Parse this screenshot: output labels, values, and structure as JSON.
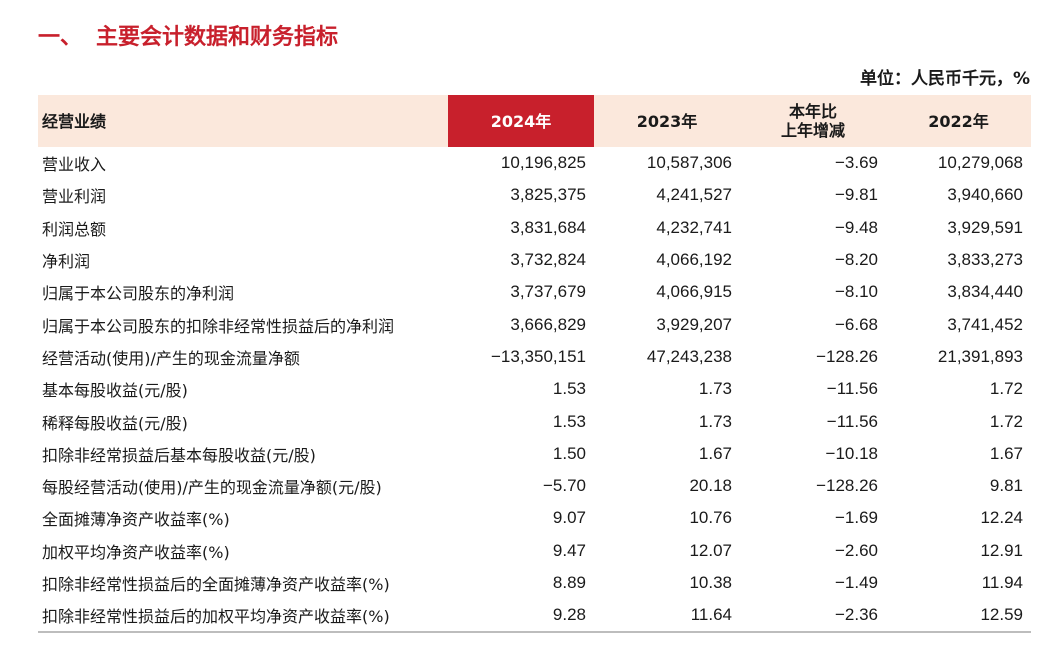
{
  "section": {
    "number": "一、",
    "title": "主要会计数据和财务指标"
  },
  "unit": "单位：人民币千元，%",
  "table": {
    "headers": {
      "label": "经营业绩",
      "y2024": "2024年",
      "y2023": "2023年",
      "change_line1": "本年比",
      "change_line2": "上年增减",
      "y2022": "2022年"
    },
    "rows": [
      {
        "label": "营业收入",
        "y2024": "10,196,825",
        "y2023": "10,587,306",
        "change": "−3.69",
        "y2022": "10,279,068"
      },
      {
        "label": "营业利润",
        "y2024": "3,825,375",
        "y2023": "4,241,527",
        "change": "−9.81",
        "y2022": "3,940,660"
      },
      {
        "label": "利润总额",
        "y2024": "3,831,684",
        "y2023": "4,232,741",
        "change": "−9.48",
        "y2022": "3,929,591"
      },
      {
        "label": "净利润",
        "y2024": "3,732,824",
        "y2023": "4,066,192",
        "change": "−8.20",
        "y2022": "3,833,273"
      },
      {
        "label": "归属于本公司股东的净利润",
        "y2024": "3,737,679",
        "y2023": "4,066,915",
        "change": "−8.10",
        "y2022": "3,834,440"
      },
      {
        "label": "归属于本公司股东的扣除非经常性损益后的净利润",
        "y2024": "3,666,829",
        "y2023": "3,929,207",
        "change": "−6.68",
        "y2022": "3,741,452"
      },
      {
        "label": "经营活动(使用)/产生的现金流量净额",
        "y2024": "−13,350,151",
        "y2023": "47,243,238",
        "change": "−128.26",
        "y2022": "21,391,893"
      },
      {
        "label": "基本每股收益(元/股)",
        "y2024": "1.53",
        "y2023": "1.73",
        "change": "−11.56",
        "y2022": "1.72"
      },
      {
        "label": "稀释每股收益(元/股)",
        "y2024": "1.53",
        "y2023": "1.73",
        "change": "−11.56",
        "y2022": "1.72"
      },
      {
        "label": "扣除非经常损益后基本每股收益(元/股)",
        "y2024": "1.50",
        "y2023": "1.67",
        "change": "−10.18",
        "y2022": "1.67"
      },
      {
        "label": "每股经营活动(使用)/产生的现金流量净额(元/股)",
        "y2024": "−5.70",
        "y2023": "20.18",
        "change": "−128.26",
        "y2022": "9.81"
      },
      {
        "label": "全面摊薄净资产收益率(%)",
        "y2024": "9.07",
        "y2023": "10.76",
        "change": "−1.69",
        "y2022": "12.24"
      },
      {
        "label": "加权平均净资产收益率(%)",
        "y2024": "9.47",
        "y2023": "12.07",
        "change": "−2.60",
        "y2022": "12.91"
      },
      {
        "label": "扣除非经常性损益后的全面摊薄净资产收益率(%)",
        "y2024": "8.89",
        "y2023": "10.38",
        "change": "−1.49",
        "y2022": "11.94"
      },
      {
        "label": "扣除非经常性损益后的加权平均净资产收益率(%)",
        "y2024": "9.28",
        "y2023": "11.64",
        "change": "−2.36",
        "y2022": "12.59"
      }
    ]
  },
  "colors": {
    "accent": "#c8202c",
    "header_bg": "#fbe8dc"
  }
}
